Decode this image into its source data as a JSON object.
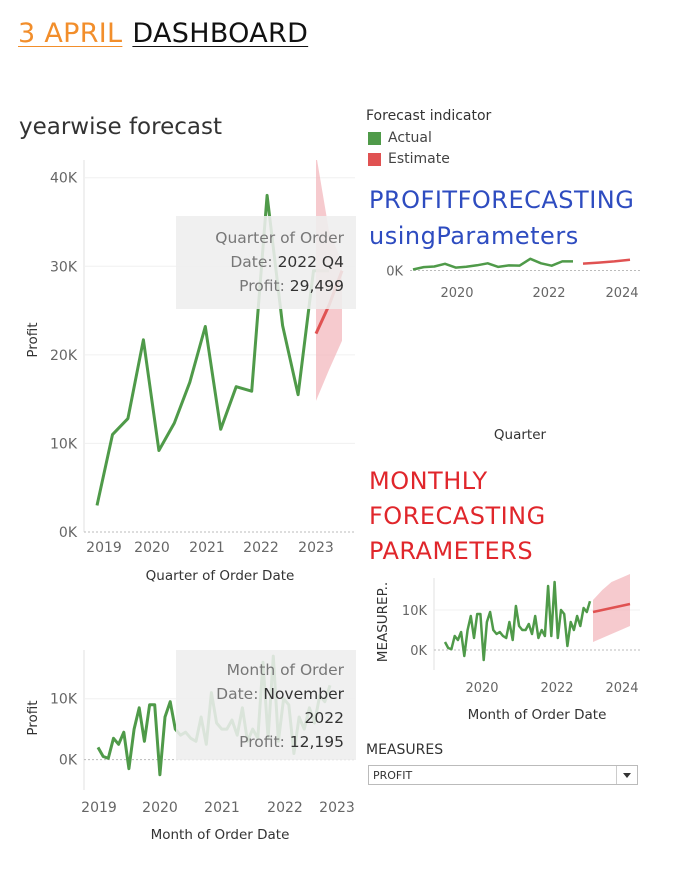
{
  "header": {
    "part1": "3 APRIL",
    "part2": "DASHBOARD"
  },
  "colors": {
    "actual": "#4f9a49",
    "estimate": "#e05252",
    "band": "#f3b8be",
    "orange": "#f28e2b",
    "blue": "#2e4cc0",
    "red": "#e0262b"
  },
  "yearwise": {
    "title": "yearwise forecast"
  },
  "legend": {
    "title": "Forecast indicator",
    "items": [
      {
        "label": "Actual"
      },
      {
        "label": "Estimate"
      }
    ]
  },
  "profit_forecasting": {
    "line1": "PROFITFORECASTING",
    "line2": "usingParameters",
    "xlabel": "Quarter"
  },
  "monthly_forecasting": {
    "line1": "MONTHLY",
    "line2": "FORECASTING",
    "line3": "PARAMETERS"
  },
  "tooltip_quarter": {
    "line1": "Quarter of Order",
    "date_label": "Date:",
    "date_value": "2022 Q4",
    "profit_label": "Profit:",
    "profit_value": "29,499"
  },
  "tooltip_month": {
    "line1": "Month of Order",
    "date_label": "Date:",
    "date_value": "November",
    "date_value2": "2022",
    "profit_label": "Profit:",
    "profit_value": "12,195"
  },
  "measures": {
    "label": "MEASURES",
    "selected": "PROFIT"
  },
  "chart_data": [
    {
      "id": "yearwise-quarterly",
      "type": "line",
      "xlabel": "Quarter of Order Date",
      "ylabel": "Profit",
      "ylim": [
        0,
        42000
      ],
      "yticks": [
        "0K",
        "10K",
        "20K",
        "30K",
        "40K"
      ],
      "xticks": [
        "2019",
        "2020",
        "2021",
        "2022",
        "2023"
      ],
      "series": [
        {
          "name": "Actual",
          "x": [
            "2019 Q1",
            "2019 Q2",
            "2019 Q3",
            "2019 Q4",
            "2020 Q1",
            "2020 Q2",
            "2020 Q3",
            "2020 Q4",
            "2021 Q1",
            "2021 Q2",
            "2021 Q3",
            "2021 Q4",
            "2022 Q1",
            "2022 Q2",
            "2022 Q3",
            "2022 Q4"
          ],
          "values": [
            3000,
            11000,
            12800,
            21700,
            9200,
            12300,
            16900,
            23200,
            11600,
            16400,
            15900,
            38000,
            23300,
            15500,
            29500,
            29499
          ]
        },
        {
          "name": "Estimate",
          "x": [
            "2023 Q1",
            "2023 Q2",
            "2023 Q3"
          ],
          "values": [
            22400,
            25600,
            29500
          ],
          "lower": [
            14800,
            18300,
            21600
          ],
          "upper": [
            42700,
            34000,
            30500
          ]
        }
      ]
    },
    {
      "id": "profit-forecasting-parameters",
      "type": "line",
      "xlabel": "Quarter",
      "yticks": [
        "0K"
      ],
      "xticks": [
        "2020",
        "2022",
        "2024"
      ],
      "series": [
        {
          "name": "Actual",
          "values": [
            3000,
            11000,
            12800,
            21700,
            9200,
            12300,
            16900,
            23200,
            11600,
            16400,
            15900,
            38000,
            23300,
            15500,
            29500,
            29499
          ]
        },
        {
          "name": "Estimate",
          "values": [
            22400,
            25600,
            29500,
            35000
          ]
        }
      ]
    },
    {
      "id": "monthly-forecasting-parameters",
      "type": "line",
      "xlabel": "Month of Order Date",
      "ylabel": "MEASUREP..",
      "ylim": [
        -5000,
        18000
      ],
      "yticks": [
        "0K",
        "10K"
      ],
      "xticks": [
        "2020",
        "2022",
        "2024"
      ],
      "series": [
        {
          "name": "Actual",
          "values": [
            2000,
            500,
            200,
            3500,
            2500,
            4500,
            -1500,
            5000,
            8500,
            3000,
            9000,
            9000,
            -2500,
            7000,
            9500,
            5000,
            4000,
            4500,
            3500,
            3000,
            7000,
            2500,
            11000,
            6000,
            5000,
            5000,
            6500,
            4000,
            8500,
            3000,
            5000,
            3500,
            16000,
            3500,
            17000,
            3000,
            10000,
            9000,
            1000,
            7000,
            5000,
            8500,
            6000,
            10500,
            9500,
            12195
          ]
        },
        {
          "name": "Estimate",
          "values": [
            9500,
            10000,
            10500,
            11000,
            11500
          ],
          "lower": [
            2000,
            3000,
            4000,
            5000,
            6000
          ],
          "upper": [
            12500,
            15000,
            17000,
            18000,
            19000
          ]
        }
      ]
    },
    {
      "id": "monthly-bottom",
      "type": "line",
      "xlabel": "Month of Order Date",
      "ylabel": "Profit",
      "ylim": [
        -5000,
        18000
      ],
      "yticks": [
        "0K",
        "10K"
      ],
      "xticks": [
        "2019",
        "2020",
        "2021",
        "2022",
        "2023"
      ],
      "series": [
        {
          "name": "Actual",
          "values": [
            2000,
            500,
            200,
            3500,
            2500,
            4500,
            -1500,
            5000,
            8500,
            3000,
            9000,
            9000,
            -2500,
            7000,
            9500,
            5000,
            4000,
            4500,
            3500,
            3000,
            7000,
            2500,
            11000,
            6000,
            5000,
            5000,
            6500,
            4000,
            8500,
            3000,
            5000,
            3500,
            16000,
            3500,
            17000,
            3000,
            10000,
            9000,
            1000,
            7000,
            5000,
            8500,
            6000,
            10500,
            9500,
            12195
          ]
        }
      ]
    }
  ]
}
